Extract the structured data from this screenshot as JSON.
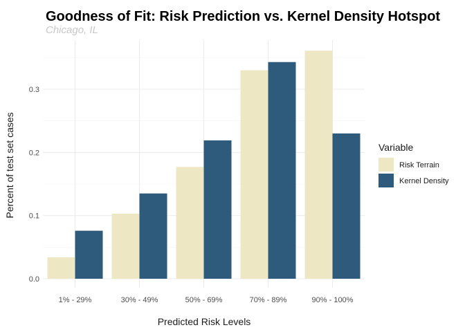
{
  "chart_data": {
    "type": "bar",
    "title": "Goodness of Fit: Risk Prediction vs. Kernel Density Hotspot",
    "subtitle": "Chicago, IL",
    "xlabel": "Predicted Risk Levels",
    "ylabel": "Percent of test set cases",
    "categories": [
      "1% - 29%",
      "30% - 49%",
      "50% - 69%",
      "70% - 89%",
      "90% - 100%"
    ],
    "series": [
      {
        "name": "Risk Terrain",
        "color": "#ede7c4",
        "values": [
          0.034,
          0.103,
          0.177,
          0.33,
          0.361
        ]
      },
      {
        "name": "Kernel Density",
        "color": "#2e5a7b",
        "values": [
          0.076,
          0.135,
          0.219,
          0.343,
          0.23
        ]
      }
    ],
    "ylim": [
      0,
      0.38
    ],
    "yticks": [
      0.0,
      0.1,
      0.2,
      0.3
    ],
    "ytick_labels": [
      "0.0",
      "0.1",
      "0.2",
      "0.3"
    ],
    "grid": true,
    "legend": {
      "title": "Variable",
      "position": "right"
    }
  }
}
